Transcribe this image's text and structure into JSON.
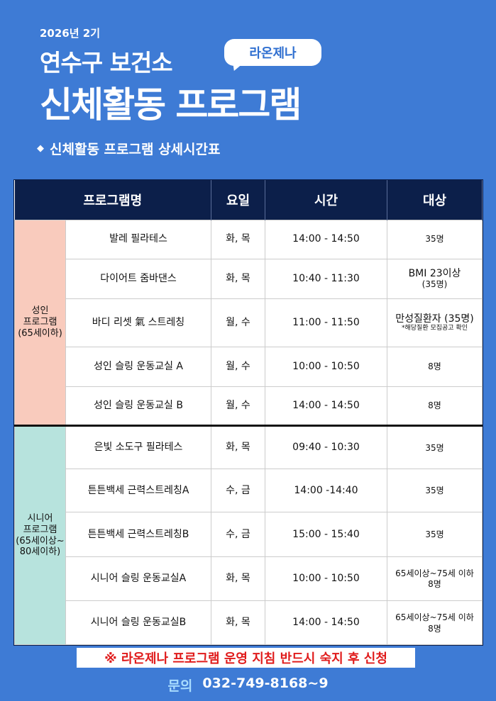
{
  "header": {
    "term": "2026년 2기",
    "org": "연수구 보건소",
    "badge": "라온제나",
    "title": "신체활동 프로그램",
    "subtitle": "신체활동 프로그램 상세시간표",
    "bullet_icon": "diamond-icon"
  },
  "table": {
    "columns": [
      "프로그램명",
      "요일",
      "시간",
      "대상"
    ],
    "groups": [
      {
        "label": [
          "성인",
          "프로그램",
          "(65세이하)"
        ],
        "rows": [
          {
            "name": "발레 필라테스",
            "day": "화, 목",
            "time": "14:00 - 14:50",
            "target": "35명",
            "note": ""
          },
          {
            "name": "다이어트 줌바댄스",
            "day": "화, 목",
            "time": "10:40 - 11:30",
            "target": "BMI 23이상",
            "note": "(35명)"
          },
          {
            "name": "바디 리셋 氣 스트레칭",
            "day": "월, 수",
            "time": "11:00 - 11:50",
            "target": "만성질환자 (35명)",
            "note": "*해당질환 모집공고 확인"
          },
          {
            "name": "성인 슬링 운동교실 A",
            "day": "월, 수",
            "time": "10:00 - 10:50",
            "target": "8명",
            "note": ""
          },
          {
            "name": "성인 슬링 운동교실 B",
            "day": "월, 수",
            "time": "14:00 - 14:50",
            "target": "8명",
            "note": ""
          }
        ]
      },
      {
        "label": [
          "시니어",
          "프로그램",
          "(65세이상~",
          "80세이하)"
        ],
        "rows": [
          {
            "name": "은빛 소도구 필라테스",
            "day": "화, 목",
            "time": "09:40 - 10:30",
            "target": "35명",
            "note": ""
          },
          {
            "name": "튼튼백세 근력스트레칭A",
            "day": "수, 금",
            "time": "14:00 -14:40",
            "target": "35명",
            "note": ""
          },
          {
            "name": "튼튼백세 근력스트레칭B",
            "day": "수, 금",
            "time": "15:00 - 15:40",
            "target": "35명",
            "note": ""
          },
          {
            "name": "시니어 슬링 운동교실A",
            "day": "화, 목",
            "time": "10:00 - 10:50",
            "target": "65세이상~75세 이하",
            "note": "8명"
          },
          {
            "name": "시니어 슬링 운동교실B",
            "day": "화, 목",
            "time": "14:00 - 14:50",
            "target": "65세이상~75세 이하",
            "note": "8명"
          }
        ]
      }
    ]
  },
  "notice": "※ 라온제나 프로그램 운영 지침 반드시 숙지 후 신청",
  "contact": {
    "label": "문의",
    "phone": "032-749-8168~9"
  },
  "colors": {
    "background": "#3e7bd5",
    "header": "#0c1f4a",
    "adult": "#f9cbbd",
    "senior": "#b7e3dd",
    "notice": "#e01b1b"
  }
}
